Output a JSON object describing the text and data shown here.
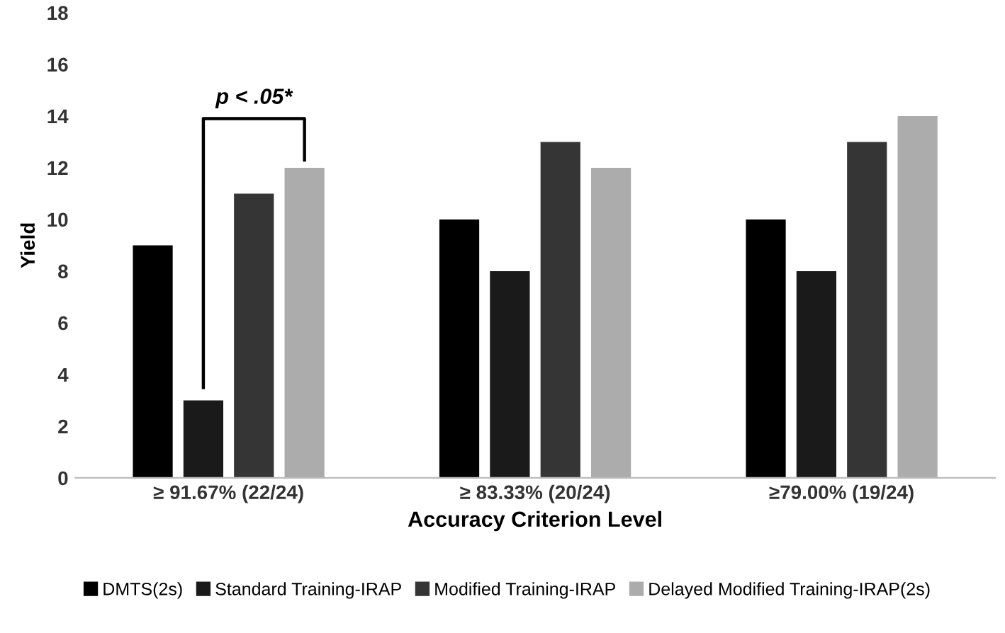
{
  "chart_data": {
    "type": "bar",
    "xlabel": "Accuracy Criterion Level",
    "ylabel": "Yield",
    "categories": [
      "≥ 91.67% (22/24)",
      "≥ 83.33% (20/24)",
      "≥79.00% (19/24)"
    ],
    "series": [
      {
        "name": "DMTS(2s)",
        "color": "#000000",
        "values": [
          9,
          10,
          10
        ]
      },
      {
        "name": "Standard Training-IRAP",
        "color": "#1a1a1a",
        "values": [
          3,
          8,
          8
        ]
      },
      {
        "name": "Modified Training-IRAP",
        "color": "#353535",
        "values": [
          11,
          13,
          13
        ]
      },
      {
        "name": "Delayed Modified Training-IRAP(2s)",
        "color": "#acacac",
        "values": [
          12,
          12,
          14
        ]
      }
    ],
    "ylim": [
      0,
      18
    ],
    "yticks": [
      0,
      2,
      4,
      6,
      8,
      10,
      12,
      14,
      16,
      18
    ],
    "annotations": [
      "p < .05*"
    ],
    "grid": false,
    "legend": "bottom"
  }
}
